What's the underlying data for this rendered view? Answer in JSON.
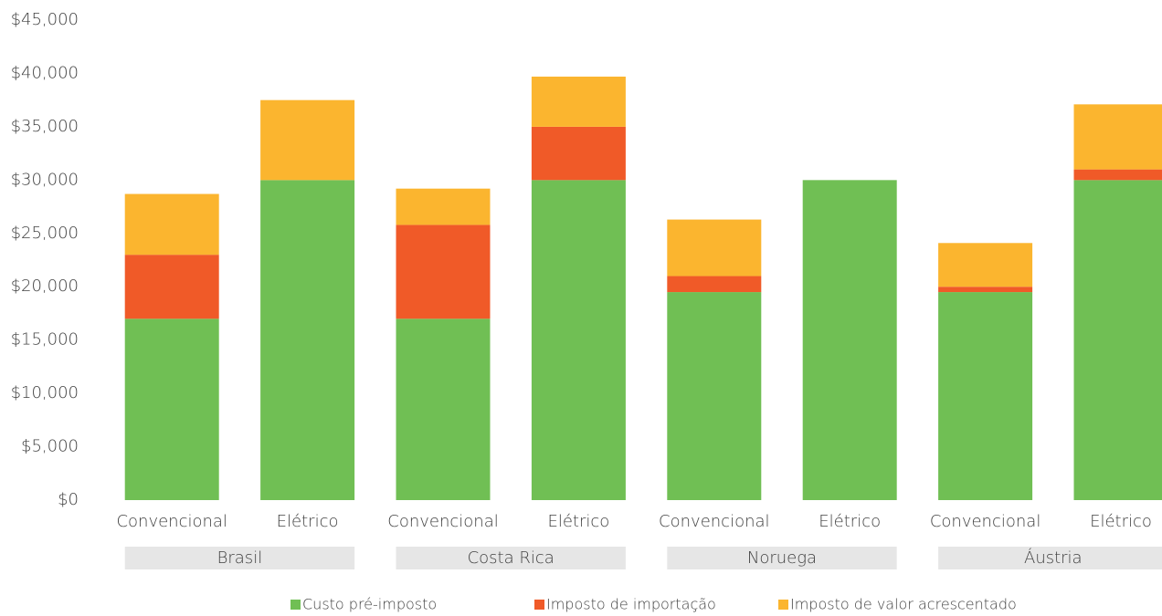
{
  "chart_data": {
    "type": "stacked_bar",
    "groups": [
      "Brasil",
      "Costa Rica",
      "Noruega",
      "Áustria"
    ],
    "categories": [
      "Convencional",
      "Elétrico",
      "Convencional",
      "Elétrico",
      "Convencional",
      "Elétrico",
      "Convencional",
      "Elétrico"
    ],
    "series": [
      {
        "name": "Custo pré-imposto",
        "color": "#70bf54",
        "values": [
          17000,
          30000,
          17000,
          30000,
          19500,
          30000,
          19500,
          30000
        ]
      },
      {
        "name": "Imposto de importação",
        "color": "#f05a28",
        "values": [
          6000,
          0,
          8800,
          5000,
          1500,
          0,
          500,
          1000
        ]
      },
      {
        "name": "Imposto de valor acrescentado",
        "color": "#fbb52f",
        "values": [
          5700,
          7500,
          3400,
          4700,
          5300,
          0,
          4100,
          6100
        ]
      }
    ],
    "ylim": [
      0,
      45000
    ],
    "yticks": [
      {
        "value": 0,
        "label": "$0"
      },
      {
        "value": 5000,
        "label": "$5,000"
      },
      {
        "value": 10000,
        "label": "$10,000"
      },
      {
        "value": 15000,
        "label": "$15,000"
      },
      {
        "value": 20000,
        "label": "$20,000"
      },
      {
        "value": 25000,
        "label": "$25,000"
      },
      {
        "value": 30000,
        "label": "$30,000"
      },
      {
        "value": 35000,
        "label": "$35,000"
      },
      {
        "value": 40000,
        "label": "$40,000"
      },
      {
        "value": 45000,
        "label": "$45,000"
      }
    ],
    "grid": false,
    "legend": "bottom"
  }
}
